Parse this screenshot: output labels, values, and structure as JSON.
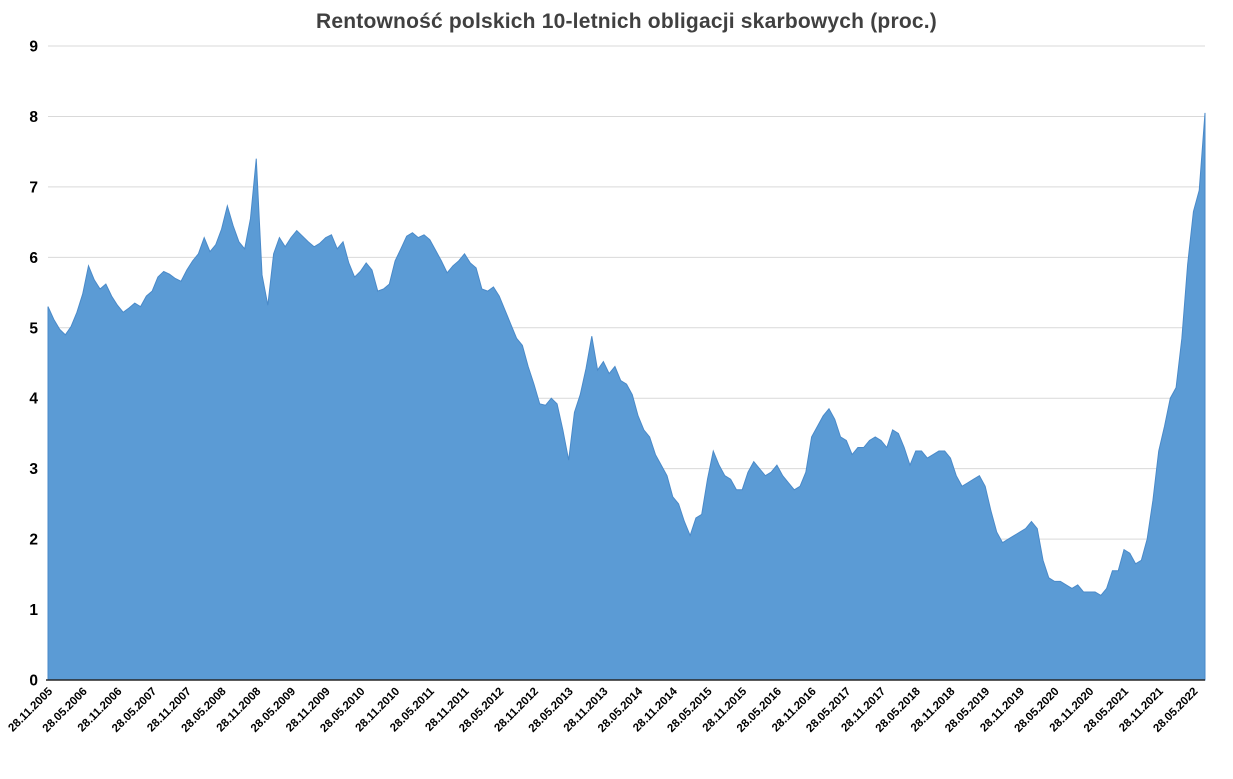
{
  "title": "Rentowność polskich 10-letnich obligacji skarbowych (proc.)",
  "chart_data": {
    "type": "area",
    "title": "Rentowność polskich 10-letnich obligacji skarbowych (proc.)",
    "series_name": "rentownosc-10y-pl",
    "xlabel": "",
    "ylabel": "",
    "ylim": [
      0,
      9
    ],
    "yticks": [
      0,
      1,
      2,
      3,
      4,
      5,
      6,
      7,
      8,
      9
    ],
    "grid": "horizontal",
    "legend": "none",
    "fill_color": "#5b9bd5",
    "edge_color": "#4a8ac9",
    "grid_color": "#d9d9d9",
    "axis_color": "#262626",
    "tick_label_color": "#000000",
    "title_color": "#404040",
    "x_unit": "months-since-first-point",
    "xtick_step": 6,
    "xtick_labels": [
      "28.11.2005",
      "28.05.2006",
      "28.11.2006",
      "28.05.2007",
      "28.11.2007",
      "28.05.2008",
      "28.11.2008",
      "28.05.2009",
      "28.11.2009",
      "28.05.2010",
      "28.11.2010",
      "28.05.2011",
      "28.11.2011",
      "28.05.2012",
      "28.11.2012",
      "28.05.2013",
      "28.11.2013",
      "28.05.2014",
      "28.11.2014",
      "28.05.2015",
      "28.11.2015",
      "28.05.2016",
      "28.11.2016",
      "28.05.2017",
      "28.11.2017",
      "28.05.2018",
      "28.11.2018",
      "28.05.2019",
      "28.11.2019",
      "28.05.2020",
      "28.11.2020",
      "28.05.2021",
      "28.11.2021",
      "28.05.2022"
    ],
    "values": [
      5.3,
      5.12,
      4.98,
      4.9,
      5.02,
      5.22,
      5.48,
      5.88,
      5.68,
      5.55,
      5.62,
      5.45,
      5.32,
      5.22,
      5.28,
      5.35,
      5.3,
      5.45,
      5.52,
      5.72,
      5.8,
      5.76,
      5.7,
      5.66,
      5.82,
      5.95,
      6.05,
      6.28,
      6.08,
      6.18,
      6.4,
      6.73,
      6.45,
      6.22,
      6.12,
      6.55,
      7.4,
      5.75,
      5.32,
      6.05,
      6.28,
      6.15,
      6.28,
      6.38,
      6.3,
      6.22,
      6.15,
      6.2,
      6.28,
      6.32,
      6.12,
      6.22,
      5.92,
      5.72,
      5.8,
      5.92,
      5.82,
      5.52,
      5.55,
      5.62,
      5.95,
      6.12,
      6.3,
      6.35,
      6.28,
      6.32,
      6.25,
      6.1,
      5.95,
      5.78,
      5.88,
      5.95,
      6.05,
      5.92,
      5.85,
      5.55,
      5.52,
      5.58,
      5.45,
      5.25,
      5.05,
      4.85,
      4.75,
      4.45,
      4.2,
      3.92,
      3.9,
      4.0,
      3.92,
      3.55,
      3.12,
      3.8,
      4.05,
      4.42,
      4.88,
      4.4,
      4.52,
      4.35,
      4.45,
      4.25,
      4.2,
      4.05,
      3.75,
      3.55,
      3.45,
      3.2,
      3.05,
      2.9,
      2.6,
      2.5,
      2.25,
      2.05,
      2.3,
      2.35,
      2.85,
      3.25,
      3.05,
      2.9,
      2.85,
      2.7,
      2.7,
      2.95,
      3.1,
      3.0,
      2.9,
      2.95,
      3.05,
      2.9,
      2.8,
      2.7,
      2.75,
      2.95,
      3.45,
      3.6,
      3.75,
      3.85,
      3.7,
      3.45,
      3.4,
      3.2,
      3.3,
      3.3,
      3.4,
      3.45,
      3.4,
      3.3,
      3.55,
      3.5,
      3.3,
      3.05,
      3.25,
      3.25,
      3.15,
      3.2,
      3.25,
      3.25,
      3.15,
      2.9,
      2.75,
      2.8,
      2.85,
      2.9,
      2.75,
      2.4,
      2.1,
      1.95,
      2.0,
      2.05,
      2.1,
      2.15,
      2.25,
      2.15,
      1.7,
      1.45,
      1.4,
      1.4,
      1.35,
      1.3,
      1.35,
      1.25,
      1.25,
      1.25,
      1.2,
      1.3,
      1.55,
      1.55,
      1.85,
      1.8,
      1.65,
      1.7,
      2.0,
      2.55,
      3.25,
      3.6,
      4.0,
      4.15,
      4.85,
      5.9,
      6.65,
      6.95,
      8.05
    ]
  }
}
